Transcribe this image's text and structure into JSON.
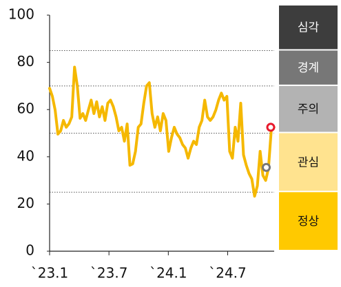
{
  "chart_data": {
    "type": "line",
    "x": [
      0,
      0.28,
      0.56,
      0.84,
      1.12,
      1.4,
      1.68,
      1.96,
      2.24,
      2.52,
      2.8,
      3.08,
      3.36,
      3.64,
      3.92,
      4.2,
      4.48,
      4.76,
      5.04,
      5.32,
      5.6,
      5.88,
      6.16,
      6.44,
      6.72,
      7,
      7.28,
      7.56,
      7.84,
      8.12,
      8.4,
      8.68,
      8.96,
      9.24,
      9.52,
      9.8,
      10.08,
      10.36,
      10.64,
      10.92,
      11.2,
      11.48,
      11.76,
      12.04,
      12.32,
      12.6,
      12.88,
      13.16,
      13.44,
      13.72,
      14,
      14.28,
      14.56,
      14.84,
      15.12,
      15.4,
      15.68,
      15.96,
      16.24,
      16.52,
      16.8,
      17.08,
      17.36,
      17.64,
      17.92,
      18.2,
      18.48,
      18.76,
      19.04,
      19.32,
      19.6,
      19.88,
      20.16,
      20.44,
      20.72,
      21,
      21.28,
      21.56,
      21.84,
      22.12,
      22.4,
      22.68
    ],
    "series": [
      {
        "color": "#f5b800",
        "values": [
          69,
          65.6,
          59.8,
          49.6,
          51,
          55.4,
          52.5,
          54,
          56.9,
          78,
          70,
          56.3,
          58.3,
          55.4,
          59.8,
          64,
          58.3,
          63.3,
          56.9,
          61.2,
          55.4,
          62.7,
          64,
          61.2,
          56.9,
          51,
          52.5,
          46.6,
          53.9,
          36.4,
          37,
          42.3,
          52.5,
          53.9,
          62.7,
          70,
          71.4,
          58.3,
          52.5,
          56.9,
          51,
          58.3,
          55.4,
          42.3,
          48.1,
          52.5,
          49.6,
          48.1,
          45.2,
          43.7,
          39.4,
          43.7,
          46.6,
          45.2,
          52.5,
          55.4,
          64,
          56.9,
          55.4,
          56.9,
          59.8,
          64,
          67,
          64,
          65.6,
          42.3,
          39.4,
          52.5,
          46.6,
          62.7,
          40.8,
          36.4,
          32.9,
          30.6,
          23.3,
          27.7,
          42.3,
          32.1,
          30,
          35,
          51,
          52.5
        ]
      }
    ],
    "markers": [
      {
        "x": 21.9,
        "value": 35.5,
        "color": "#777777"
      },
      {
        "x": 22.35,
        "value": 52.5,
        "color": "#e8192c"
      }
    ],
    "bands": [
      {
        "label": "심각",
        "from": 85,
        "to": 100,
        "color": "#3d3d3d"
      },
      {
        "label": "경계",
        "from": 70,
        "to": 85,
        "color": "#777777"
      },
      {
        "label": "주의",
        "from": 50,
        "to": 70,
        "color": "#b3b3b3"
      },
      {
        "label": "관심",
        "from": 25,
        "to": 50,
        "color": "#ffe38f"
      },
      {
        "label": "정상",
        "from": 0,
        "to": 25,
        "color": "#ffc900"
      }
    ],
    "xlim": [
      0,
      22.7
    ],
    "xticks": [
      {
        "value": 0,
        "label": "`23.1"
      },
      {
        "value": 6,
        "label": "`23.7"
      },
      {
        "value": 12,
        "label": "`24.1"
      },
      {
        "value": 18,
        "label": "`24.7"
      }
    ],
    "ylim": [
      0,
      100
    ],
    "yticks": [
      0,
      20,
      40,
      60,
      80,
      100
    ]
  }
}
